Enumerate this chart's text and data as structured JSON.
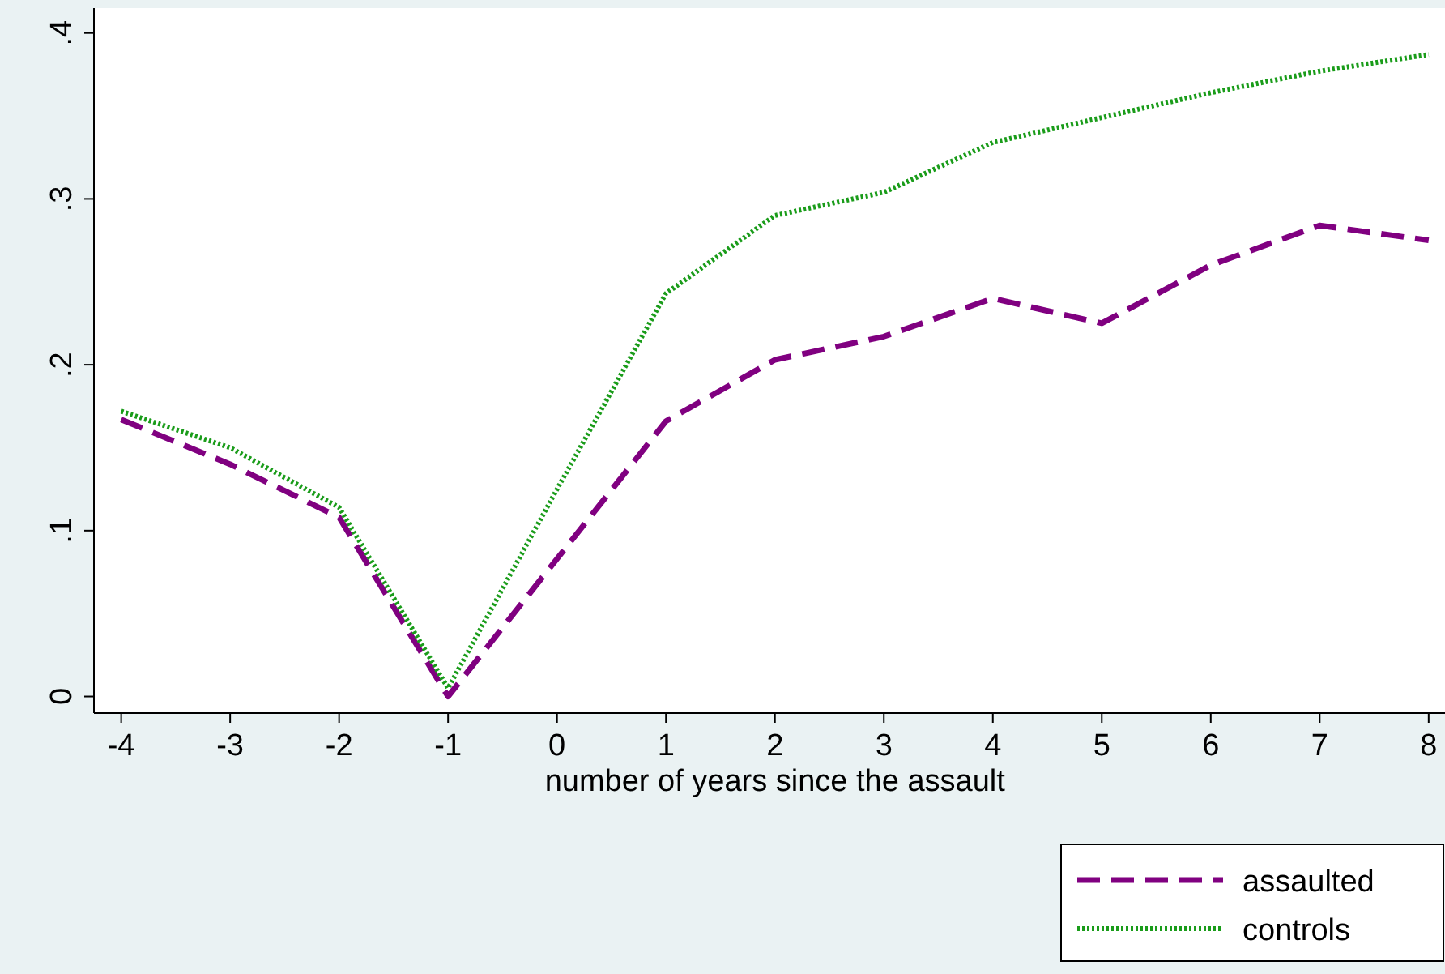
{
  "chart_data": {
    "type": "line",
    "xlabel": "number of years since the assault",
    "x": [
      -4,
      -3,
      -2,
      -1,
      0,
      1,
      2,
      3,
      4,
      5,
      6,
      7,
      8
    ],
    "xlim": [
      -4.25,
      8.15
    ],
    "xticks": [
      -4,
      -3,
      -2,
      -1,
      0,
      1,
      2,
      3,
      4,
      5,
      6,
      7,
      8
    ],
    "ylim": [
      -0.01,
      0.415
    ],
    "yticks": [
      {
        "value": 0,
        "label": "0"
      },
      {
        "value": 0.1,
        "label": ".1"
      },
      {
        "value": 0.2,
        "label": ".2"
      },
      {
        "value": 0.3,
        "label": ".3"
      },
      {
        "value": 0.4,
        "label": ".4"
      }
    ],
    "legend": "bottom right",
    "grid": false,
    "marker": "none",
    "series": [
      {
        "name": "assaulted",
        "color": "#800080",
        "line_style": "dashed",
        "values": [
          0.167,
          0.14,
          0.108,
          0,
          0.083,
          0.166,
          0.203,
          0.217,
          0.24,
          0.225,
          0.26,
          0.284,
          0.275
        ]
      },
      {
        "name": "controls",
        "color": "#1a9c1a",
        "line_style": "dotted",
        "values": [
          0.172,
          0.15,
          0.114,
          0.005,
          0.125,
          0.243,
          0.29,
          0.304,
          0.334,
          0.349,
          0.364,
          0.377,
          0.387
        ]
      }
    ]
  }
}
